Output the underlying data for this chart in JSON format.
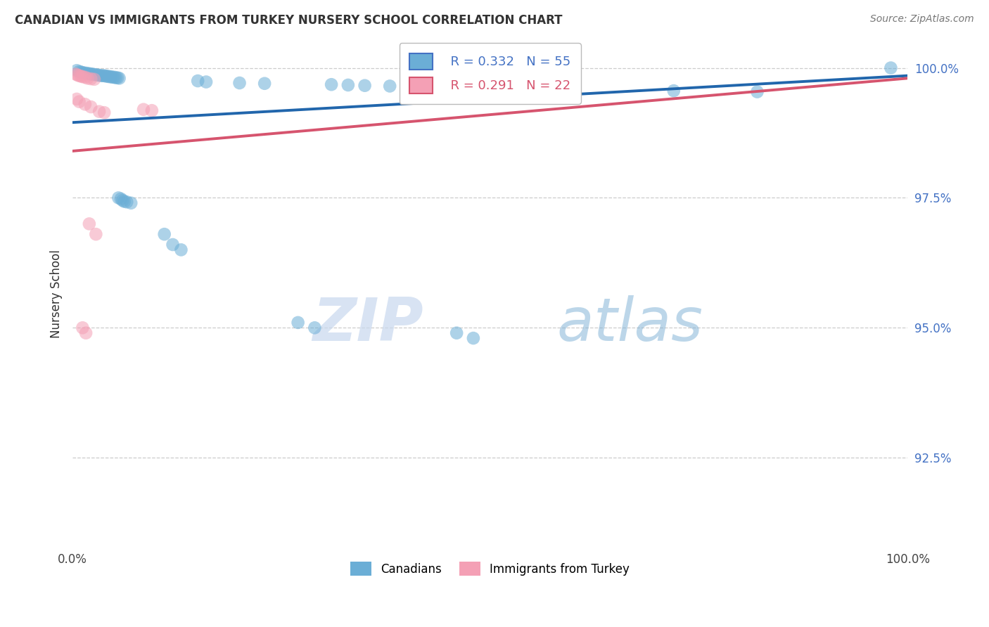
{
  "title": "CANADIAN VS IMMIGRANTS FROM TURKEY NURSERY SCHOOL CORRELATION CHART",
  "source": "Source: ZipAtlas.com",
  "ylabel": "Nursery School",
  "legend_blue_r": "R = 0.332",
  "legend_blue_n": "N = 55",
  "legend_pink_r": "R = 0.291",
  "legend_pink_n": "N = 22",
  "blue_color": "#6baed6",
  "pink_color": "#f4a0b5",
  "blue_line_color": "#2166ac",
  "pink_line_color": "#d6546e",
  "background_color": "#ffffff",
  "watermark_zip": "ZIP",
  "watermark_atlas": "atlas",
  "ytick_vals": [
    0.925,
    0.95,
    0.975,
    1.0
  ],
  "ytick_labels": [
    "92.5%",
    "95.0%",
    "97.5%",
    "100.0%"
  ],
  "xlim": [
    0.0,
    1.0
  ],
  "ylim": [
    0.908,
    1.005
  ],
  "blue_line": [
    0.9895,
    0.9985
  ],
  "pink_line": [
    0.984,
    0.998
  ],
  "canadians_x": [
    0.005,
    0.008,
    0.01,
    0.012,
    0.014,
    0.016,
    0.018,
    0.02,
    0.022,
    0.024,
    0.026,
    0.028,
    0.03,
    0.032,
    0.034,
    0.036,
    0.038,
    0.04,
    0.042,
    0.044,
    0.046,
    0.048,
    0.05,
    0.052,
    0.054,
    0.056,
    0.15,
    0.16,
    0.2,
    0.23,
    0.31,
    0.33,
    0.35,
    0.38,
    0.4,
    0.42,
    0.44,
    0.56,
    0.6,
    0.72,
    0.82,
    0.98,
    0.055,
    0.058,
    0.06,
    0.062,
    0.065,
    0.07,
    0.11,
    0.12,
    0.13,
    0.27,
    0.29,
    0.46,
    0.48
  ],
  "canadians_y": [
    0.9995,
    0.9993,
    0.9992,
    0.9991,
    0.999,
    0.999,
    0.9989,
    0.9989,
    0.9988,
    0.9988,
    0.9987,
    0.9987,
    0.9986,
    0.9986,
    0.9985,
    0.9985,
    0.9985,
    0.9984,
    0.9984,
    0.9983,
    0.9983,
    0.9982,
    0.9982,
    0.9981,
    0.9981,
    0.998,
    0.9975,
    0.9973,
    0.9971,
    0.997,
    0.9968,
    0.9967,
    0.9966,
    0.9965,
    0.9964,
    0.9963,
    0.9962,
    0.996,
    0.9958,
    0.9956,
    0.9954,
    1.0,
    0.975,
    0.9748,
    0.9745,
    0.9743,
    0.9742,
    0.974,
    0.968,
    0.966,
    0.965,
    0.951,
    0.95,
    0.949,
    0.948
  ],
  "turkey_x": [
    0.004,
    0.006,
    0.008,
    0.01,
    0.012,
    0.015,
    0.018,
    0.022,
    0.026,
    0.005,
    0.008,
    0.015,
    0.022,
    0.085,
    0.095,
    0.032,
    0.038,
    0.02,
    0.028,
    0.558,
    0.012,
    0.016
  ],
  "turkey_y": [
    0.9988,
    0.9986,
    0.9985,
    0.9984,
    0.9983,
    0.9982,
    0.998,
    0.9979,
    0.9978,
    0.994,
    0.9935,
    0.993,
    0.9925,
    0.992,
    0.9918,
    0.9916,
    0.9914,
    0.97,
    0.968,
    0.9995,
    0.95,
    0.949
  ]
}
